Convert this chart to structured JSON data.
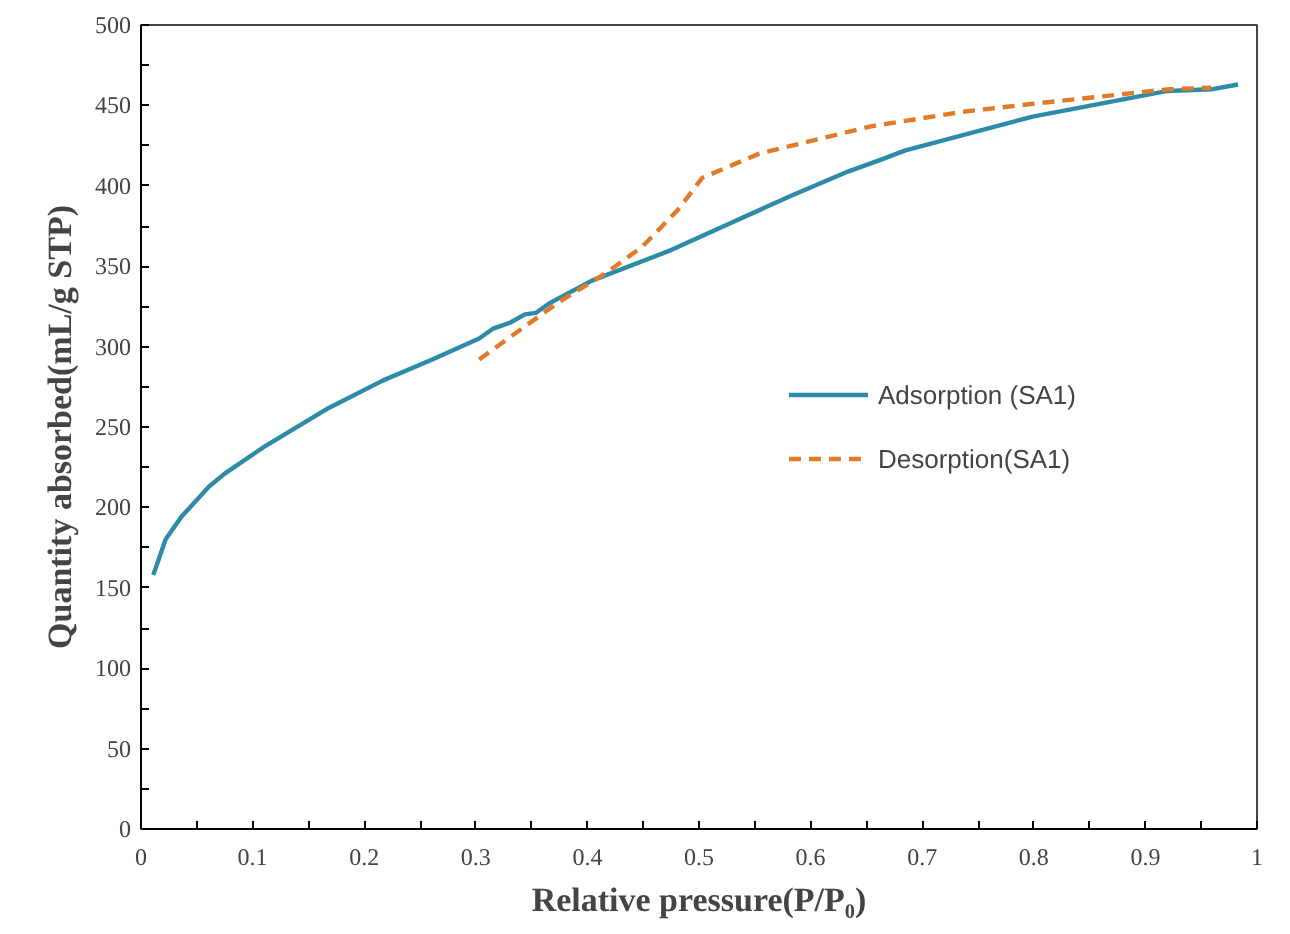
{
  "chart_data": {
    "type": "line",
    "xlabel": "Relative pressure(P/P₀)",
    "ylabel": "Quantity absorbed(mL/g STP)",
    "xlim": [
      0,
      1
    ],
    "ylim": [
      0,
      500
    ],
    "xticks": [
      0,
      {
        "value": 0.05,
        "label": null
      },
      0.1,
      {
        "value": 0.15,
        "label": null
      },
      0.2,
      {
        "value": 0.25,
        "label": null
      },
      0.3,
      {
        "value": 0.35,
        "label": null
      },
      0.4,
      {
        "value": 0.45,
        "label": null
      },
      0.5,
      {
        "value": 0.55,
        "label": null
      },
      0.6,
      {
        "value": 0.65,
        "label": null
      },
      0.7,
      {
        "value": 0.75,
        "label": null
      },
      0.8,
      {
        "value": 0.85,
        "label": null
      },
      0.9,
      {
        "value": 0.95,
        "label": null
      },
      1
    ],
    "yticks": [
      0,
      {
        "value": 25,
        "label": null
      },
      50,
      {
        "value": 75,
        "label": null
      },
      100,
      {
        "value": 125,
        "label": null
      },
      150,
      {
        "value": 175,
        "label": null
      },
      200,
      {
        "value": 225,
        "label": null
      },
      250,
      {
        "value": 275,
        "label": null
      },
      300,
      {
        "value": 325,
        "label": null
      },
      350,
      {
        "value": 375,
        "label": null
      },
      400,
      {
        "value": 425,
        "label": null
      },
      450,
      {
        "value": 475,
        "label": null
      },
      500
    ],
    "grid": false,
    "legend": "right",
    "marker": "none",
    "series": [
      {
        "name": "Adsorption (SA1)",
        "color": "#2e8ba8",
        "line_style": "solid",
        "x": [
          0.011,
          0.022,
          0.036,
          0.061,
          0.075,
          0.111,
          0.166,
          0.217,
          0.261,
          0.303,
          0.315,
          0.331,
          0.344,
          0.354,
          0.366,
          0.404,
          0.475,
          0.529,
          0.58,
          0.634,
          0.662,
          0.685,
          0.799,
          0.92,
          0.959,
          0.983
        ],
        "values": [
          158,
          180,
          194,
          213,
          221,
          238,
          261,
          279,
          292,
          305,
          311,
          315,
          320,
          321,
          327,
          341,
          360,
          377,
          393,
          409,
          416,
          422,
          443,
          459,
          460,
          463
        ]
      },
      {
        "name": "Desorption(SA1)",
        "color": "#e07b2a",
        "line_style": "dashed",
        "x": [
          0.303,
          0.341,
          0.373,
          0.417,
          0.449,
          0.481,
          0.503,
          0.554,
          0.654,
          0.736,
          0.799,
          0.92,
          0.959
        ],
        "values": [
          292,
          311,
          327,
          346,
          362,
          385,
          405,
          420,
          437,
          446,
          451,
          460,
          461
        ]
      }
    ]
  }
}
